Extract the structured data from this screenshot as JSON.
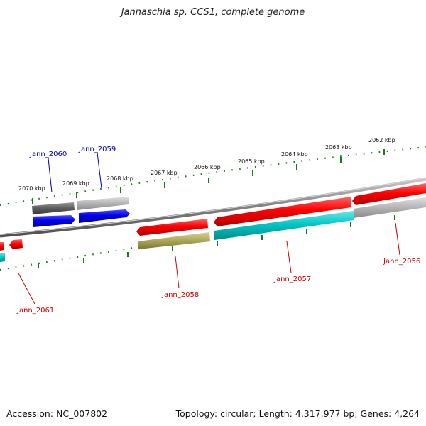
{
  "title": "Jannaschia sp. CCS1, complete genome",
  "footer": {
    "accession": "Accession: NC_007802",
    "summary": "Topology: circular; Length: 4,317,977 bp; Genes: 4,264"
  },
  "scale_labels": [
    "2070 kbp",
    "2069 kbp",
    "2068 kbp",
    "2067 kbp",
    "2066 kbp",
    "2065 kbp",
    "2064 kbp",
    "2063 kbp",
    "2062 kbp"
  ],
  "gene_labels": {
    "jann_2060": "Jann_2060",
    "jann_2059": "Jann_2059",
    "jann_2061": "Jann_2061",
    "jann_2058": "Jann_2058",
    "jann_2057": "Jann_2057",
    "jann_2056": "Jann_2056"
  },
  "colors": {
    "scale": "#1a7a1a",
    "backbone": "#808080",
    "gene_red": "#ff0000",
    "gene_blue": "#0000ee",
    "gene_cyan": "#00c8c8",
    "gene_olive": "#b0aa5a",
    "gene_gray": "#b0b0b0",
    "gene_darkgray": "#606060",
    "label_blue": "#0000aa",
    "label_red": "#cc0000"
  }
}
